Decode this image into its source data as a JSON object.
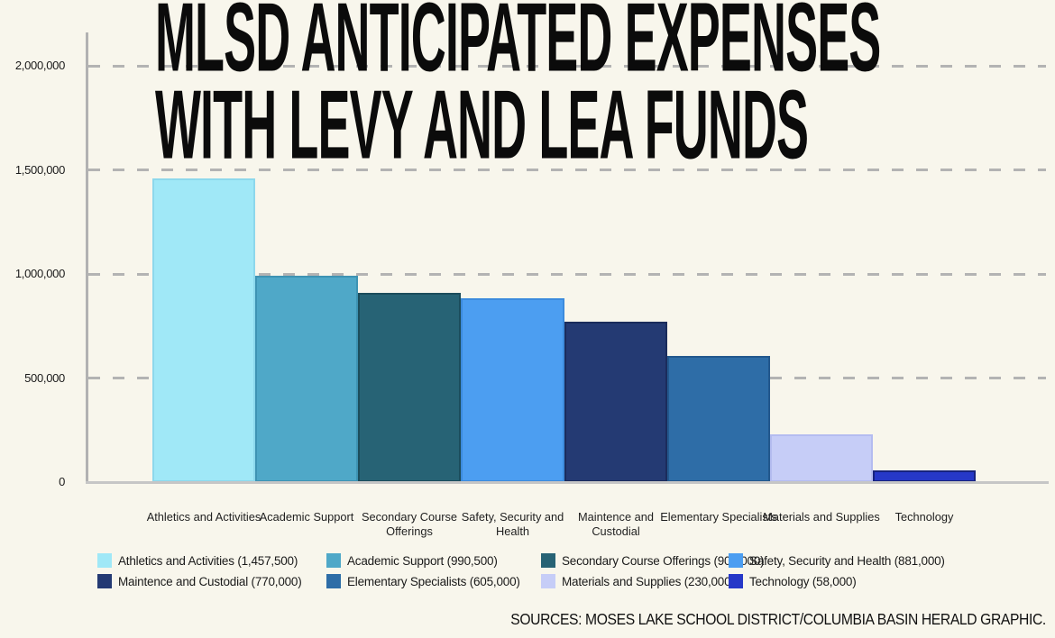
{
  "title": {
    "line1": "MLSD ANTICIPATED EXPENSES",
    "line2": "WITH LEVY AND LEA FUNDS"
  },
  "source": "SOURCES: MOSES LAKE SCHOOL DISTRICT/COLUMBIA BASIN HERALD GRAPHIC.",
  "colors": {
    "background": "#f8f6ec",
    "axis": "#b2b2b2",
    "gridline": "#b3b3b3",
    "title_text": "#0b0b0b"
  },
  "chart_data": {
    "type": "bar",
    "title": "MLSD ANTICIPATED EXPENSES WITH LEVY AND LEA FUNDS",
    "xlabel": "",
    "ylabel": "",
    "ylim": [
      0,
      2000000
    ],
    "grid": "horizontal-dashed",
    "legend_position": "bottom",
    "y_ticks": [
      {
        "value": 2000000,
        "label": "2,000,000"
      },
      {
        "value": 1500000,
        "label": "1,500,000"
      },
      {
        "value": 1000000,
        "label": "1,000,000"
      },
      {
        "value": 500000,
        "label": "500,000"
      },
      {
        "value": 0,
        "label": "0"
      }
    ],
    "categories": [
      "Athletics and Activities",
      "Academic Support",
      "Secondary Course Offerings",
      "Safety, Security and Health",
      "Maintence and Custodial",
      "Elementary Specialists",
      "Materials and Supplies",
      "Technology"
    ],
    "values": [
      1457500,
      990500,
      908000,
      881000,
      770000,
      605000,
      230000,
      58000
    ],
    "bars": [
      {
        "label": "Athletics and Activities",
        "value": 1457500,
        "legend_label": "Athletics and Activities (1,457,500)",
        "color": "#a0e8f7",
        "border_color": "#8dd8ec"
      },
      {
        "label": "Academic Support",
        "value": 990500,
        "legend_label": "Academic Support (990,500)",
        "color": "#4fa8c8",
        "border_color": "#3e93b3"
      },
      {
        "label": "Secondary Course Offerings",
        "value": 908000,
        "legend_label": "Secondary Course Offerings (908,000)",
        "color": "#276375",
        "border_color": "#1c4d5c"
      },
      {
        "label": "Safety, Security and Health",
        "value": 881000,
        "legend_label": "Safety, Security and Health (881,000)",
        "color": "#4c9ef1",
        "border_color": "#3c8bdd"
      },
      {
        "label": "Maintence and Custodial",
        "value": 770000,
        "legend_label": "Maintence and Custodial (770,000)",
        "color": "#243a73",
        "border_color": "#1b2c5c"
      },
      {
        "label": "Elementary Specialists",
        "value": 605000,
        "legend_label": "Elementary Specialists (605,000)",
        "color": "#2e6da7",
        "border_color": "#23588d"
      },
      {
        "label": "Materials and Supplies",
        "value": 230000,
        "legend_label": "Materials and Supplies (230,000)",
        "color": "#c6cdf7",
        "border_color": "#b4bcf0"
      },
      {
        "label": "Technology",
        "value": 58000,
        "legend_label": "Technology (58,000)",
        "color": "#2638c8",
        "border_color": "#17237e"
      }
    ]
  }
}
